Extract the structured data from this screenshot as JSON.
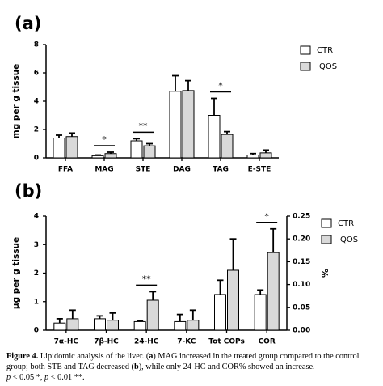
{
  "chart_data": [
    {
      "type": "bar",
      "label": "(a)",
      "ylabel": "mg per g tissue",
      "categories": [
        "FFA",
        "MAG",
        "STE",
        "DAG",
        "TAG",
        "E-STE"
      ],
      "series": [
        {
          "name": "CTR",
          "color": "#ffffff",
          "values": [
            1.4,
            0.15,
            1.2,
            4.7,
            3.0,
            0.2
          ],
          "errors": [
            0.2,
            0.05,
            0.15,
            1.1,
            1.2,
            0.1
          ]
        },
        {
          "name": "IQOS",
          "color": "#d9d9d9",
          "values": [
            1.5,
            0.3,
            0.85,
            4.75,
            1.65,
            0.35
          ],
          "errors": [
            0.25,
            0.1,
            0.15,
            0.7,
            0.2,
            0.2
          ]
        }
      ],
      "ylim": [
        0,
        8
      ],
      "yticks": [
        0,
        2,
        4,
        6,
        8
      ],
      "annotations": [
        {
          "text": "*",
          "category": "MAG"
        },
        {
          "text": "**",
          "category": "STE"
        },
        {
          "text": "*",
          "category": "TAG"
        }
      ]
    },
    {
      "type": "bar",
      "label": "(b)",
      "ylabel": "μg per g tissue",
      "y2label": "%",
      "categories": [
        "7α-HC",
        "7β-HC",
        "24-HC",
        "7-KC",
        "Tot COPs",
        "COR"
      ],
      "series": [
        {
          "name": "CTR",
          "color": "#ffffff",
          "values": [
            0.25,
            0.4,
            0.3,
            0.3,
            1.25,
            null
          ],
          "errors": [
            0.15,
            0.1,
            0.03,
            0.25,
            0.5,
            null
          ]
        },
        {
          "name": "IQOS",
          "color": "#d9d9d9",
          "values": [
            0.4,
            0.35,
            1.05,
            0.35,
            2.1,
            null
          ],
          "errors": [
            0.3,
            0.25,
            0.3,
            0.35,
            1.1,
            null
          ]
        },
        {
          "color": "#ffffff",
          "axis": "y2",
          "values": [
            null,
            null,
            null,
            null,
            null,
            0.078
          ],
          "errors": [
            null,
            null,
            null,
            null,
            null,
            0.01
          ]
        },
        {
          "color": "#d9d9d9",
          "axis": "y2",
          "values": [
            null,
            null,
            null,
            null,
            null,
            0.17
          ],
          "errors": [
            null,
            null,
            null,
            null,
            null,
            0.052
          ]
        }
      ],
      "ylim": [
        0,
        4
      ],
      "yticks": [
        0,
        1,
        2,
        3,
        4
      ],
      "y2lim": [
        0,
        0.25
      ],
      "y2ticks": [
        {
          "value": 0,
          "label": "0.00"
        },
        {
          "value": 0.05,
          "label": "0.05"
        },
        {
          "value": 0.1,
          "label": "0.10"
        },
        {
          "value": 0.15,
          "label": "0.15"
        },
        {
          "value": 0.2,
          "label": "0.20"
        },
        {
          "value": 0.25,
          "label": "0.25"
        }
      ],
      "annotations": [
        {
          "text": "**",
          "category": "24-HC"
        },
        {
          "text": "*",
          "category": "COR"
        }
      ]
    }
  ],
  "caption": {
    "segments": [
      {
        "text": "Figure 4.",
        "bold": true
      },
      {
        "text": " Lipidomic analysis of the liver. ("
      },
      {
        "text": "a",
        "bold": true
      },
      {
        "text": ") MAG increased in the treated group compared to the control group; both STE and TAG decreased ("
      },
      {
        "text": "b",
        "bold": true
      },
      {
        "text": "), while only 24-HC and COR% showed an increase."
      },
      {
        "text": "p",
        "italic": true,
        "newline": true
      },
      {
        "text": " < 0.05 *, "
      },
      {
        "text": "p",
        "italic": true
      },
      {
        "text": " < 0.01 **."
      }
    ]
  }
}
